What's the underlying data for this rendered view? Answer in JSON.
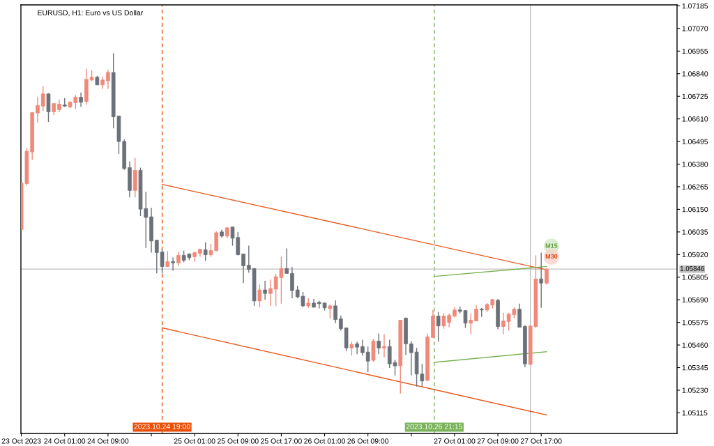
{
  "chart_data": {
    "type": "candlestick",
    "title": "EURUSD, H1: Euro vs US Dollar",
    "series": [
      {
        "x": [
          "2023-10-23T17:00",
          "2023-10-23T18:00",
          "2023-10-23T19:00",
          "2023-10-23T20:00",
          "2023-10-23T21:00",
          "2023-10-23T22:00",
          "2023-10-23T23:00",
          "2023-10-24T00:00",
          "2023-10-24T01:00",
          "2023-10-24T02:00",
          "2023-10-24T03:00",
          "2023-10-24T04:00",
          "2023-10-24T05:00",
          "2023-10-24T06:00",
          "2023-10-24T07:00",
          "2023-10-24T08:00",
          "2023-10-24T09:00",
          "2023-10-24T10:00",
          "2023-10-24T11:00",
          "2023-10-24T12:00",
          "2023-10-24T13:00",
          "2023-10-24T14:00",
          "2023-10-24T15:00",
          "2023-10-24T16:00",
          "2023-10-24T17:00",
          "2023-10-24T18:00",
          "2023-10-24T19:00",
          "2023-10-24T20:00",
          "2023-10-24T21:00",
          "2023-10-24T22:00",
          "2023-10-24T23:00",
          "2023-10-25T00:00",
          "2023-10-25T01:00",
          "2023-10-25T02:00",
          "2023-10-25T03:00",
          "2023-10-25T04:00",
          "2023-10-25T05:00",
          "2023-10-25T06:00",
          "2023-10-25T07:00",
          "2023-10-25T08:00",
          "2023-10-25T09:00",
          "2023-10-25T10:00",
          "2023-10-25T11:00",
          "2023-10-25T12:00",
          "2023-10-25T13:00",
          "2023-10-25T14:00",
          "2023-10-25T15:00",
          "2023-10-25T16:00",
          "2023-10-25T17:00",
          "2023-10-25T18:00",
          "2023-10-25T19:00",
          "2023-10-25T20:00",
          "2023-10-25T21:00",
          "2023-10-25T22:00",
          "2023-10-25T23:00",
          "2023-10-26T00:00",
          "2023-10-26T01:00",
          "2023-10-26T02:00",
          "2023-10-26T03:00",
          "2023-10-26T04:00",
          "2023-10-26T05:00",
          "2023-10-26T06:00",
          "2023-10-26T07:00",
          "2023-10-26T08:00",
          "2023-10-26T09:00",
          "2023-10-26T10:00",
          "2023-10-26T11:00",
          "2023-10-26T12:00",
          "2023-10-26T13:00",
          "2023-10-26T14:00",
          "2023-10-26T15:00",
          "2023-10-26T16:00",
          "2023-10-26T17:00",
          "2023-10-26T18:00",
          "2023-10-26T19:00",
          "2023-10-26T20:00",
          "2023-10-26T21:00",
          "2023-10-26T22:00",
          "2023-10-26T23:00",
          "2023-10-27T00:00",
          "2023-10-27T01:00",
          "2023-10-27T02:00",
          "2023-10-27T03:00",
          "2023-10-27T04:00",
          "2023-10-27T05:00",
          "2023-10-27T06:00",
          "2023-10-27T07:00",
          "2023-10-27T08:00",
          "2023-10-27T09:00",
          "2023-10-27T10:00",
          "2023-10-27T11:00",
          "2023-10-27T12:00",
          "2023-10-27T13:00",
          "2023-10-27T14:00",
          "2023-10-27T15:00",
          "2023-10-27T16:00",
          "2023-10-27T17:00",
          "2023-10-27T18:00"
        ],
        "ohlc": [
          [
            1.06047,
            1.06284,
            1.06047,
            1.06284
          ],
          [
            1.06281,
            1.06462,
            1.06271,
            1.06445
          ],
          [
            1.06442,
            1.06642,
            1.06401,
            1.06642
          ],
          [
            1.0664,
            1.06723,
            1.06591,
            1.06678
          ],
          [
            1.06675,
            1.06776,
            1.0665,
            1.06737
          ],
          [
            1.06737,
            1.06741,
            1.06594,
            1.06646
          ],
          [
            1.06646,
            1.06688,
            1.06629,
            1.06688
          ],
          [
            1.06657,
            1.06709,
            1.06644,
            1.06685
          ],
          [
            1.06681,
            1.06716,
            1.06671,
            1.06675
          ],
          [
            1.06671,
            1.06699,
            1.06665,
            1.06696
          ],
          [
            1.06692,
            1.06731,
            1.0666,
            1.0672
          ],
          [
            1.0672,
            1.06744,
            1.06671,
            1.06695
          ],
          [
            1.06699,
            1.06865,
            1.06681,
            1.06811
          ],
          [
            1.06808,
            1.06857,
            1.06801,
            1.06822
          ],
          [
            1.06822,
            1.06829,
            1.06783,
            1.06783
          ],
          [
            1.06783,
            1.06825,
            1.06762,
            1.06808
          ],
          [
            1.06804,
            1.0686,
            1.06762,
            1.06846
          ],
          [
            1.06846,
            1.06944,
            1.06562,
            1.06621
          ],
          [
            1.06625,
            1.06625,
            1.06432,
            1.06495
          ],
          [
            1.06495,
            1.06506,
            1.06351,
            1.06358
          ],
          [
            1.06362,
            1.06393,
            1.06211,
            1.06246
          ],
          [
            1.06246,
            1.06411,
            1.06211,
            1.06348
          ],
          [
            1.06348,
            1.06362,
            1.06116,
            1.06151
          ],
          [
            1.06154,
            1.06239,
            1.05954,
            1.06109
          ],
          [
            1.06112,
            1.06158,
            1.0593,
            1.05989
          ],
          [
            1.05993,
            1.05993,
            1.05824,
            1.0593
          ],
          [
            1.05933,
            1.05947,
            1.05824,
            1.05859
          ],
          [
            1.05859,
            1.05937,
            1.05859,
            1.05884
          ],
          [
            1.05884,
            1.05905,
            1.05838,
            1.05878
          ],
          [
            1.05878,
            1.05933,
            1.05863,
            1.05916
          ],
          [
            1.05916,
            1.0594,
            1.05881,
            1.05891
          ],
          [
            1.05923,
            1.05926,
            1.05891,
            1.05905
          ],
          [
            1.05909,
            1.05933,
            1.05884,
            1.0593
          ],
          [
            1.05926,
            1.05947,
            1.05909,
            1.05947
          ],
          [
            1.05944,
            1.05982,
            1.05888,
            1.05919
          ],
          [
            1.05919,
            1.05975,
            1.05909,
            1.0594
          ],
          [
            1.0594,
            1.06039,
            1.05937,
            1.06031
          ],
          [
            1.06035,
            1.06046,
            1.06007,
            1.06014
          ],
          [
            1.06014,
            1.0606,
            1.06003,
            1.06056
          ],
          [
            1.0606,
            1.0606,
            1.05965,
            1.06003
          ],
          [
            1.06007,
            1.06035,
            1.05916,
            1.05919
          ],
          [
            1.05923,
            1.05923,
            1.05775,
            1.05863
          ],
          [
            1.05866,
            1.05965,
            1.05828,
            1.05845
          ],
          [
            1.05849,
            1.05849,
            1.05659,
            1.05684
          ],
          [
            1.05684,
            1.05768,
            1.05652,
            1.0574
          ],
          [
            1.0574,
            1.05786,
            1.05691,
            1.05722
          ],
          [
            1.05722,
            1.05793,
            1.05659,
            1.05747
          ],
          [
            1.05744,
            1.05821,
            1.05659,
            1.05807
          ],
          [
            1.05803,
            1.05909,
            1.0567,
            1.05849
          ],
          [
            1.05849,
            1.05951,
            1.05824,
            1.05824
          ],
          [
            1.05824,
            1.05856,
            1.05698,
            1.05737
          ],
          [
            1.0574,
            1.05761,
            1.05698,
            1.05705
          ],
          [
            1.05708,
            1.0573,
            1.05652,
            1.05659
          ],
          [
            1.05659,
            1.05698,
            1.05649,
            1.05673
          ],
          [
            1.05673,
            1.05694,
            1.05652,
            1.05652
          ],
          [
            1.05677,
            1.05684,
            1.05645,
            1.0567
          ],
          [
            1.05673,
            1.05677,
            1.05635,
            1.05649
          ],
          [
            1.05645,
            1.05666,
            1.05596,
            1.05659
          ],
          [
            1.05659,
            1.05687,
            1.05571,
            1.05589
          ],
          [
            1.05593,
            1.0561,
            1.05533,
            1.05543
          ],
          [
            1.05547,
            1.05547,
            1.05428,
            1.05445
          ],
          [
            1.05445,
            1.05477,
            1.05406,
            1.05463
          ],
          [
            1.05466,
            1.05477,
            1.05413,
            1.05449
          ],
          [
            1.05452,
            1.05487,
            1.05406,
            1.05421
          ],
          [
            1.05424,
            1.05452,
            1.05322,
            1.05378
          ],
          [
            1.05382,
            1.05491,
            1.05375,
            1.0548
          ],
          [
            1.0548,
            1.05519,
            1.05413,
            1.05445
          ],
          [
            1.05445,
            1.05515,
            1.05396,
            1.05452
          ],
          [
            1.05452,
            1.05487,
            1.05343,
            1.05364
          ],
          [
            1.05371,
            1.05385,
            1.05305,
            1.05354
          ],
          [
            1.05354,
            1.05586,
            1.05213,
            1.05586
          ],
          [
            1.05596,
            1.056,
            1.0541,
            1.05466
          ],
          [
            1.05466,
            1.0548,
            1.05305,
            1.05421
          ],
          [
            1.05424,
            1.05445,
            1.05248,
            1.05312
          ],
          [
            1.05312,
            1.05364,
            1.05248,
            1.05277
          ],
          [
            1.0528,
            1.05519,
            1.05277,
            1.05501
          ],
          [
            1.05498,
            1.05638,
            1.05498,
            1.05607
          ],
          [
            1.05607,
            1.05628,
            1.05477,
            1.05557
          ],
          [
            1.05557,
            1.05621,
            1.05543,
            1.05607
          ],
          [
            1.05575,
            1.05621,
            1.0555,
            1.0561
          ],
          [
            1.05607,
            1.05652,
            1.056,
            1.05638
          ],
          [
            1.05638,
            1.05656,
            1.05621,
            1.05631
          ],
          [
            1.05635,
            1.05638,
            1.05547,
            1.05571
          ],
          [
            1.05571,
            1.05621,
            1.05515,
            1.05586
          ],
          [
            1.05582,
            1.05663,
            1.05582,
            1.05642
          ],
          [
            1.05642,
            1.05649,
            1.05603,
            1.05638
          ],
          [
            1.05638,
            1.05673,
            1.05628,
            1.05666
          ],
          [
            1.05663,
            1.05694,
            1.05645,
            1.05691
          ],
          [
            1.05687,
            1.05694,
            1.0554,
            1.05554
          ],
          [
            1.05554,
            1.05624,
            1.05515,
            1.05582
          ],
          [
            1.05579,
            1.05624,
            1.05533,
            1.05617
          ],
          [
            1.05614,
            1.05652,
            1.05596,
            1.05642
          ],
          [
            1.05642,
            1.0567,
            1.0555,
            1.0555
          ],
          [
            1.05554,
            1.05561,
            1.05347,
            1.05364
          ],
          [
            1.05361,
            1.05557,
            1.05361,
            1.05557
          ],
          [
            1.05554,
            1.05916,
            1.05547,
            1.05796
          ],
          [
            1.05796,
            1.0593,
            1.05649,
            1.05775
          ],
          [
            1.05775,
            1.05849,
            1.05768,
            1.05845
          ]
        ],
        "colors": [
          "#ef8a7a",
          "#ef8a7a",
          "#ef8a7a",
          "#ef8a7a",
          "#ef8a7a",
          "#6c7179",
          "#ef8a7a",
          "#ef8a7a",
          "#6c7179",
          "#ef8a7a",
          "#ef8a7a",
          "#6c7179",
          "#ef8a7a",
          "#ef8a7a",
          "#6c7179",
          "#ef8a7a",
          "#ef8a7a",
          "#6c7179",
          "#6c7179",
          "#6c7179",
          "#6c7179",
          "#ef8a7a",
          "#6c7179",
          "#6c7179",
          "#6c7179",
          "#6c7179",
          "#6c7179",
          "#ef8a7a",
          "#6c7179",
          "#ef8a7a",
          "#6c7179",
          "#6c7179",
          "#ef8a7a",
          "#ef8a7a",
          "#6c7179",
          "#ef8a7a",
          "#ef8a7a",
          "#6c7179",
          "#ef8a7a",
          "#6c7179",
          "#6c7179",
          "#6c7179",
          "#6c7179",
          "#6c7179",
          "#ef8a7a",
          "#6c7179",
          "#ef8a7a",
          "#ef8a7a",
          "#ef8a7a",
          "#6c7179",
          "#6c7179",
          "#6c7179",
          "#6c7179",
          "#ef8a7a",
          "#6c7179",
          "#6c7179",
          "#6c7179",
          "#ef8a7a",
          "#6c7179",
          "#6c7179",
          "#6c7179",
          "#ef8a7a",
          "#6c7179",
          "#6c7179",
          "#6c7179",
          "#ef8a7a",
          "#6c7179",
          "#ef8a7a",
          "#6c7179",
          "#6c7179",
          "#ef8a7a",
          "#6c7179",
          "#6c7179",
          "#6c7179",
          "#6c7179",
          "#ef8a7a",
          "#ef8a7a",
          "#6c7179",
          "#ef8a7a",
          "#ef8a7a",
          "#ef8a7a",
          "#6c7179",
          "#6c7179",
          "#ef8a7a",
          "#ef8a7a",
          "#6c7179",
          "#ef8a7a",
          "#ef8a7a",
          "#6c7179",
          "#ef8a7a",
          "#ef8a7a",
          "#ef8a7a",
          "#6c7179",
          "#6c7179",
          "#ef8a7a",
          "#ef8a7a",
          "#6c7179",
          "#ef8a7a"
        ]
      },
      {
        "type": "line",
        "x": [
          "2023-10-24T19:00",
          "2023-10-27T18:00"
        ],
        "values": [
          1.06277,
          1.05842
        ],
        "color": "#e8561a"
      },
      {
        "type": "line",
        "x": [
          "2023-10-24T19:00",
          "2023-10-27T18:00"
        ],
        "values": [
          1.05547,
          1.05104
        ],
        "color": "#e8561a"
      },
      {
        "type": "line",
        "x": [
          "2023-10-26T21:15",
          "2023-10-27T18:00"
        ],
        "values": [
          1.05809,
          1.05859
        ],
        "color": "#74b04c"
      },
      {
        "type": "line",
        "x": [
          "2023-10-26T21:15",
          "2023-10-27T18:00"
        ],
        "values": [
          1.05372,
          1.05426
        ],
        "color": "#74b04c"
      }
    ],
    "xlim": [
      "2023-10-23T16:55",
      "2023-10-28T18:05"
    ],
    "xticks": [
      {
        "value": "2023-10-23T17:00",
        "label": "23 Oct 2023"
      },
      {
        "value": "2023-10-24T01:00",
        "label": "24 Oct 01:00"
      },
      {
        "value": "2023-10-24T09:00",
        "label": "24 Oct 09:00"
      },
      {
        "value": "2023-10-24T17:00",
        "label": null
      },
      {
        "value": "2023-10-25T01:00",
        "label": "25 Oct 01:00"
      },
      {
        "value": "2023-10-25T09:00",
        "label": "25 Oct 09:00"
      },
      {
        "value": "2023-10-25T17:00",
        "label": "25 Oct 17:00"
      },
      {
        "value": "2023-10-26T01:00",
        "label": "26 Oct 01:00"
      },
      {
        "value": "2023-10-26T09:00",
        "label": "26 Oct 09:00"
      },
      {
        "value": "2023-10-26T17:00",
        "label": null
      },
      {
        "value": "2023-10-27T01:00",
        "label": "27 Oct 01:00"
      },
      {
        "value": "2023-10-27T09:00",
        "label": "27 Oct 09:00"
      },
      {
        "value": "2023-10-27T17:00",
        "label": "27 Oct 17:00"
      }
    ],
    "ylim": [
      1.0501,
      1.0719
    ],
    "yticks": [
      1.07185,
      {
        "value": 1.0707,
        "label": "1.07070"
      },
      1.06955,
      {
        "value": 1.0684,
        "label": "1.06840"
      },
      1.06725,
      {
        "value": 1.0661,
        "label": "1.06610"
      },
      1.06495,
      {
        "value": 1.0638,
        "label": "1.06380"
      },
      1.06265,
      {
        "value": 1.0615,
        "label": "1.06150"
      },
      1.06035,
      {
        "value": 1.0592,
        "label": "1.05920"
      },
      1.05805,
      {
        "value": 1.0569,
        "label": "1.05690"
      },
      1.05575,
      {
        "value": 1.0546,
        "label": "1.05460"
      },
      1.05345,
      {
        "value": 1.0523,
        "label": "1.05230"
      },
      1.05115
    ],
    "ref_lines": [
      {
        "axis": "x",
        "value": "2023-10-24T19:00",
        "label": "2023.10.24 19:00",
        "color": "#e8500a",
        "line_style": "dashed"
      },
      {
        "axis": "x",
        "value": "2023-10-26T21:15",
        "label": "2023.10.26 21:15",
        "color": "#79b35a",
        "line_style": "dashed"
      },
      {
        "axis": "x",
        "value": "2023-10-27T15:00",
        "color": "#c0c0c0"
      },
      {
        "axis": "y",
        "value": 1.05846,
        "label": "1.05846",
        "color": "#c0c0c0"
      }
    ],
    "annotations": [
      "M15",
      "M30"
    ]
  }
}
